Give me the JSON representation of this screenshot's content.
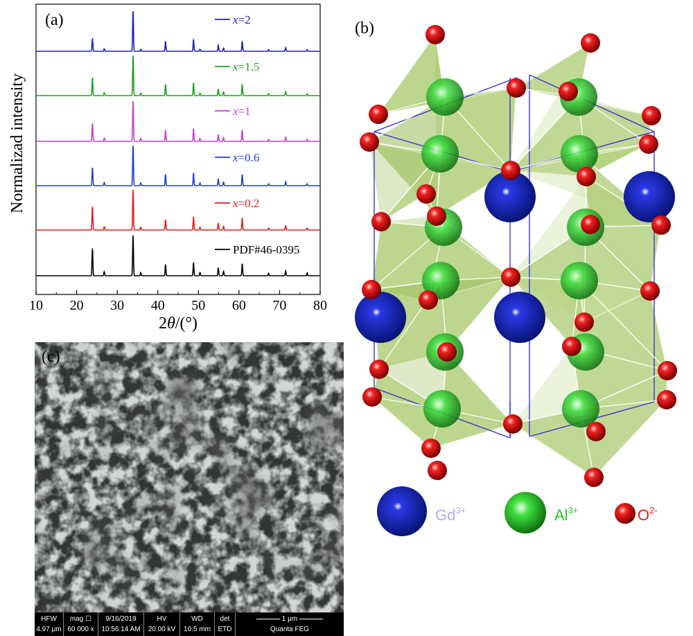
{
  "panel_a": {
    "label": "(a)",
    "ylabel": "Normalizad intensity",
    "xlabel_prefix": "2",
    "xlabel_theta": "θ",
    "xlabel_suffix": "/(°)",
    "legend": [
      {
        "prefix": "x",
        "text": "=2",
        "color": "#1f1fb4"
      },
      {
        "prefix": "x",
        "text": "=1.5",
        "color": "#1ea01e"
      },
      {
        "prefix": "x",
        "text": "=1",
        "color": "#c040d0"
      },
      {
        "prefix": "x",
        "text": "=0.6",
        "color": "#1f3fd0"
      },
      {
        "prefix": "x",
        "text": "=0.2",
        "color": "#e01e1e"
      },
      {
        "prefix": "",
        "text": "PDF#46-0395",
        "color": "#000000"
      }
    ]
  },
  "chart_data": {
    "type": "line",
    "title": "",
    "xlabel": "2θ/(°)",
    "ylabel": "Normalizad intensity",
    "xlim": [
      10,
      80
    ],
    "xticks": [
      "10",
      "20",
      "30",
      "40",
      "50",
      "60",
      "70",
      "80"
    ],
    "series": [
      {
        "name": "x=2",
        "color": "#1f1fb4",
        "peaks": [
          [
            23.9,
            0.32
          ],
          [
            26.8,
            0.06
          ],
          [
            33.9,
            1.0
          ],
          [
            35.8,
            0.05
          ],
          [
            41.9,
            0.25
          ],
          [
            48.8,
            0.3
          ],
          [
            50.4,
            0.05
          ],
          [
            54.9,
            0.15
          ],
          [
            56.2,
            0.08
          ],
          [
            60.8,
            0.25
          ],
          [
            67.3,
            0.04
          ],
          [
            71.5,
            0.09
          ],
          [
            76.8,
            0.04
          ]
        ]
      },
      {
        "name": "x=1.5",
        "color": "#1ea01e",
        "peaks": [
          [
            23.9,
            0.45
          ],
          [
            26.8,
            0.07
          ],
          [
            33.9,
            1.0
          ],
          [
            35.8,
            0.06
          ],
          [
            41.9,
            0.28
          ],
          [
            48.8,
            0.32
          ],
          [
            50.4,
            0.06
          ],
          [
            54.9,
            0.17
          ],
          [
            56.2,
            0.09
          ],
          [
            60.8,
            0.28
          ],
          [
            67.3,
            0.05
          ],
          [
            71.5,
            0.1
          ],
          [
            76.8,
            0.05
          ]
        ]
      },
      {
        "name": "x=1",
        "color": "#c040d0",
        "peaks": [
          [
            23.9,
            0.45
          ],
          [
            26.8,
            0.08
          ],
          [
            33.9,
            1.0
          ],
          [
            35.8,
            0.07
          ],
          [
            41.9,
            0.28
          ],
          [
            48.8,
            0.32
          ],
          [
            50.4,
            0.07
          ],
          [
            54.9,
            0.17
          ],
          [
            56.2,
            0.09
          ],
          [
            60.8,
            0.28
          ],
          [
            67.3,
            0.05
          ],
          [
            71.5,
            0.1
          ],
          [
            76.8,
            0.05
          ]
        ]
      },
      {
        "name": "x=0.6",
        "color": "#1f3fd0",
        "peaks": [
          [
            23.9,
            0.45
          ],
          [
            26.8,
            0.08
          ],
          [
            33.9,
            1.0
          ],
          [
            35.8,
            0.07
          ],
          [
            41.9,
            0.28
          ],
          [
            48.8,
            0.32
          ],
          [
            50.4,
            0.07
          ],
          [
            54.9,
            0.17
          ],
          [
            56.2,
            0.09
          ],
          [
            60.8,
            0.28
          ],
          [
            67.3,
            0.05
          ],
          [
            71.5,
            0.1
          ],
          [
            76.8,
            0.05
          ]
        ]
      },
      {
        "name": "x=0.2",
        "color": "#e01e1e",
        "peaks": [
          [
            23.9,
            0.58
          ],
          [
            26.8,
            0.08
          ],
          [
            33.9,
            1.0
          ],
          [
            35.8,
            0.07
          ],
          [
            41.9,
            0.26
          ],
          [
            48.8,
            0.33
          ],
          [
            50.4,
            0.07
          ],
          [
            54.9,
            0.17
          ],
          [
            56.2,
            0.09
          ],
          [
            60.8,
            0.3
          ],
          [
            67.3,
            0.05
          ],
          [
            71.5,
            0.1
          ],
          [
            76.8,
            0.05
          ]
        ]
      },
      {
        "name": "PDF#46-0395",
        "color": "#000000",
        "peaks": [
          [
            23.9,
            0.68
          ],
          [
            26.8,
            0.1
          ],
          [
            33.9,
            1.0
          ],
          [
            35.8,
            0.08
          ],
          [
            41.9,
            0.28
          ],
          [
            48.8,
            0.33
          ],
          [
            50.4,
            0.08
          ],
          [
            54.9,
            0.2
          ],
          [
            56.2,
            0.11
          ],
          [
            60.8,
            0.3
          ],
          [
            67.3,
            0.06
          ],
          [
            71.5,
            0.12
          ],
          [
            76.8,
            0.07
          ]
        ]
      }
    ]
  },
  "panel_b": {
    "label": "(b)",
    "legend": [
      {
        "ion": "Gd",
        "charge": "3+",
        "color": "#b3a8f0"
      },
      {
        "ion": "Al",
        "charge": "3+",
        "color": "#22c422"
      },
      {
        "ion": "O",
        "charge": "2-",
        "color": "#e01a1a"
      }
    ]
  },
  "panel_c": {
    "label": "(c)",
    "databar": [
      {
        "h": "HFW",
        "v": "4.97 μm"
      },
      {
        "h": "mag ☐",
        "v": "60 000 x"
      },
      {
        "h": "9/16/2019",
        "v": "10:56:14 AM"
      },
      {
        "h": "HV",
        "v": "20.00 kV"
      },
      {
        "h": "WD",
        "v": "10.5 mm"
      },
      {
        "h": "det",
        "v": "ETD"
      },
      {
        "h": "1 μm",
        "v": "Quanta FEG"
      }
    ]
  }
}
